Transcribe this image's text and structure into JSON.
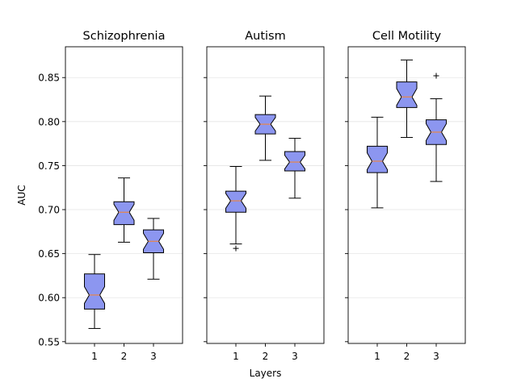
{
  "chart_data": {
    "type": "boxplot",
    "notched": true,
    "ylabel": "AUC",
    "xlabel": "Layers",
    "ylim": [
      0.548,
      0.885
    ],
    "yticks": [
      "0.55",
      "0.60",
      "0.65",
      "0.70",
      "0.75",
      "0.80",
      "0.85"
    ],
    "categories": [
      "1",
      "2",
      "3"
    ],
    "grid": "horizontal",
    "colors": {
      "box_fill": "#8c96f0",
      "median": "#e8864a",
      "edge": "#000000",
      "grid": "#e5e5e5"
    },
    "panels": [
      {
        "title": "Schizophrenia",
        "boxes": [
          {
            "layer": "1",
            "whisker_low": 0.565,
            "q1": 0.587,
            "median": 0.603,
            "q3": 0.627,
            "whisker_high": 0.649,
            "fliers": []
          },
          {
            "layer": "2",
            "whisker_low": 0.663,
            "q1": 0.683,
            "median": 0.697,
            "q3": 0.709,
            "whisker_high": 0.736,
            "fliers": []
          },
          {
            "layer": "3",
            "whisker_low": 0.621,
            "q1": 0.651,
            "median": 0.664,
            "q3": 0.677,
            "whisker_high": 0.69,
            "fliers": []
          }
        ]
      },
      {
        "title": "Autism",
        "boxes": [
          {
            "layer": "1",
            "whisker_low": 0.661,
            "q1": 0.697,
            "median": 0.71,
            "q3": 0.721,
            "whisker_high": 0.749,
            "fliers": [
              0.656
            ]
          },
          {
            "layer": "2",
            "whisker_low": 0.756,
            "q1": 0.786,
            "median": 0.797,
            "q3": 0.808,
            "whisker_high": 0.829,
            "fliers": []
          },
          {
            "layer": "3",
            "whisker_low": 0.713,
            "q1": 0.744,
            "median": 0.754,
            "q3": 0.766,
            "whisker_high": 0.781,
            "fliers": []
          }
        ]
      },
      {
        "title": "Cell Motility",
        "boxes": [
          {
            "layer": "1",
            "whisker_low": 0.702,
            "q1": 0.742,
            "median": 0.755,
            "q3": 0.772,
            "whisker_high": 0.805,
            "fliers": []
          },
          {
            "layer": "2",
            "whisker_low": 0.782,
            "q1": 0.816,
            "median": 0.828,
            "q3": 0.845,
            "whisker_high": 0.87,
            "fliers": []
          },
          {
            "layer": "3",
            "whisker_low": 0.732,
            "q1": 0.774,
            "median": 0.788,
            "q3": 0.802,
            "whisker_high": 0.826,
            "fliers": [
              0.852
            ]
          }
        ]
      }
    ]
  }
}
